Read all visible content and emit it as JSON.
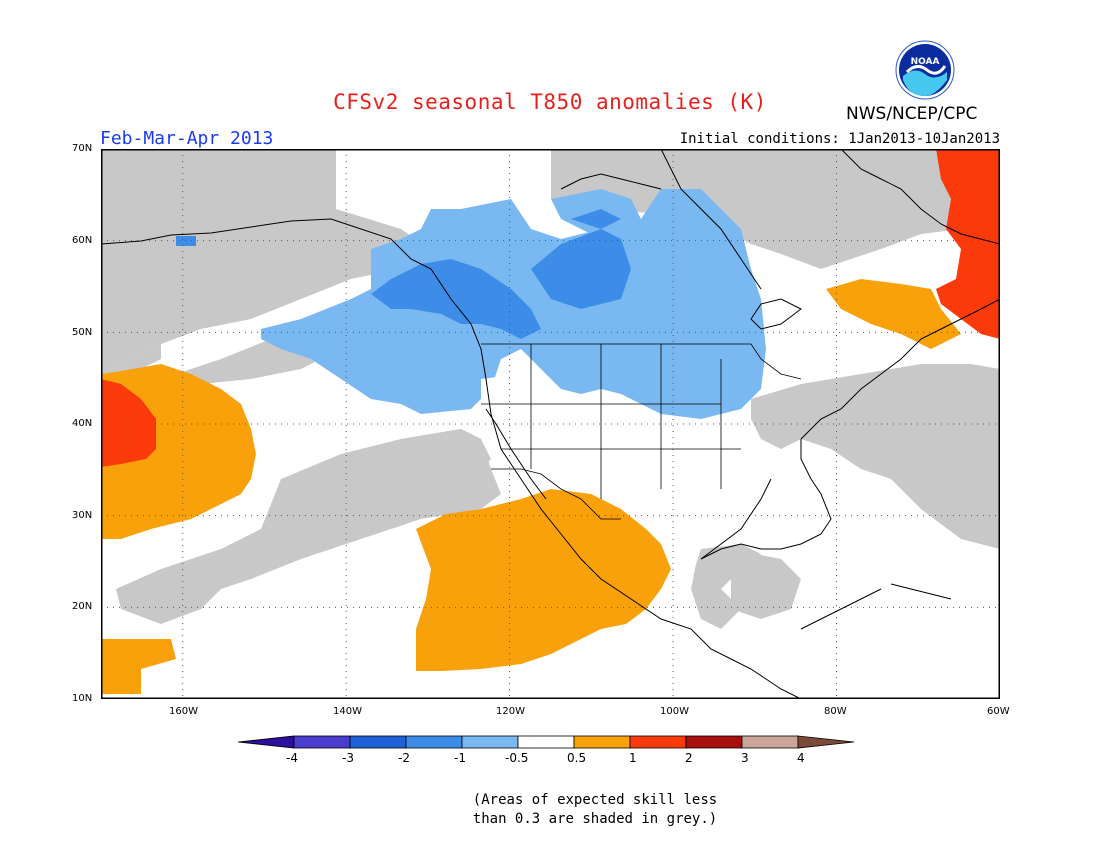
{
  "header": {
    "title": "CFSv2 seasonal T850 anomalies (K)",
    "period": "Feb-Mar-Apr 2013",
    "initial_conditions": "Initial conditions: 1Jan2013-10Jan2013",
    "agency": "NWS/NCEP/CPC",
    "logo_text": "NOAA"
  },
  "map": {
    "lat_labels": [
      "70N",
      "60N",
      "50N",
      "40N",
      "30N",
      "20N",
      "10N"
    ],
    "lon_labels": [
      "160W",
      "140W",
      "120W",
      "100W",
      "80W",
      "60W"
    ],
    "regions": {
      "grey": "skill < 0.3",
      "light_blue": "-1 to -0.5",
      "mid_blue": "-2 to -1",
      "orange": "0.5 to 1",
      "red_orange": "1 to 2"
    }
  },
  "colorbar": {
    "colors": [
      "#2b0fa0",
      "#4a3ccc",
      "#1f62d6",
      "#3c8ce8",
      "#7ab8f2",
      "#ffffff",
      "#f9a10b",
      "#fb3a0c",
      "#a81010",
      "#cba597",
      "#7b4a3a"
    ],
    "labels": [
      "-4",
      "-3",
      "-2",
      "-1",
      "-0.5",
      "0.5",
      "1",
      "2",
      "3",
      "4"
    ]
  },
  "note": {
    "line1": "(Areas of expected skill less",
    "line2": "than 0.3 are shaded in grey.)"
  }
}
